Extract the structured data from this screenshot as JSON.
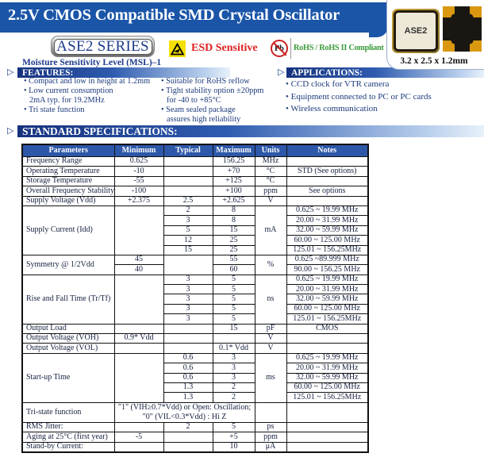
{
  "title": "2.5V CMOS Compatible SMD Crystal Oscillator",
  "series_badge": "ASE2 SERIES",
  "msl": "Moisture Sensitivity Level (MSL)–1",
  "esd": {
    "label": "ESD Sensitive"
  },
  "rohs": {
    "pb": "Pb",
    "label": "RoHS / RoHS II Compliant"
  },
  "product": {
    "chip_label": "ASE2",
    "dimensions": "3.2  x 2.5  x 1.2mm"
  },
  "features": {
    "heading": "FEATURES:",
    "col1": [
      {
        "text": "Compact and low in height at 1.2mm",
        "bullet": true
      },
      {
        "text": "Low current consumption",
        "bullet": true
      },
      {
        "text": "2mA typ. for 19.2MHz",
        "bullet": false
      },
      {
        "text": "Tri state function",
        "bullet": true
      }
    ],
    "col2": [
      {
        "text": "Suitable for RoHS reflow",
        "bullet": true
      },
      {
        "text": "Tight stability option ±20ppm",
        "bullet": true
      },
      {
        "text": "for -40 to +85°C",
        "bullet": false
      },
      {
        "text": "Seam sealed package",
        "bullet": true
      },
      {
        "text": "assures high reliability",
        "bullet": false
      }
    ]
  },
  "applications": {
    "heading": "APPLICATIONS:",
    "items": [
      {
        "text": "CCD clock for VTR camera",
        "bullet": true
      },
      {
        "text": "Equipment connected to PC or PC cards",
        "bullet": true
      },
      {
        "text": "Wireless communication",
        "bullet": true
      }
    ]
  },
  "specs": {
    "heading": "STANDARD SPECIFICATIONS:",
    "columns": [
      "Parameters",
      "Minimum",
      "Typical",
      "Maximum",
      "Units",
      "Notes"
    ],
    "rows": [
      {
        "type": "single",
        "param": "Frequency Range",
        "min": "0.625",
        "typ": "",
        "max": "156.25",
        "units": "MHz",
        "notes": ""
      },
      {
        "type": "single",
        "param": "Operating Temperature",
        "min": "-10",
        "typ": "",
        "max": "+70",
        "units": "°C",
        "notes": "STD (See options)"
      },
      {
        "type": "single",
        "param": "Storage Temperature",
        "min": "-55",
        "typ": "",
        "max": "+125",
        "units": "°C",
        "notes": ""
      },
      {
        "type": "single",
        "param": "Overall Frequency Stability",
        "min": "-100",
        "typ": "",
        "max": "+100",
        "units": "ppm",
        "notes": "See options"
      },
      {
        "type": "single",
        "param": "Supply Voltage (Vdd)",
        "min": "+2.375",
        "typ": "2.5",
        "max": "+2.625",
        "units": "V",
        "notes": ""
      },
      {
        "type": "group",
        "param": "Supply Current (Idd)",
        "units": "mA",
        "merge": "min",
        "mergeVal": "",
        "sub": [
          {
            "min": "",
            "typ": "2",
            "max": "8",
            "notes": "0.625 ~ 19.99 MHz"
          },
          {
            "min": "",
            "typ": "3",
            "max": "8",
            "notes": "20.00 ~ 31.99 MHz"
          },
          {
            "min": "",
            "typ": "5",
            "max": "15",
            "notes": "32.00 ~ 59.99 MHz"
          },
          {
            "min": "",
            "typ": "12",
            "max": "25",
            "notes": "60.00 ~ 125.00 MHz"
          },
          {
            "min": "",
            "typ": "15",
            "max": "25",
            "notes": "125.01 ~ 156.25MHz"
          }
        ]
      },
      {
        "type": "group",
        "param": "Symmetry  @ 1/2Vdd",
        "units": "%",
        "merge": "typ",
        "mergeVal": "",
        "sub": [
          {
            "min": "45",
            "typ": "",
            "max": "55",
            "notes": "0.625 ~89.999 MHz"
          },
          {
            "min": "40",
            "typ": "",
            "max": "60",
            "notes": "90.00 ~ 156.25 MHz"
          }
        ]
      },
      {
        "type": "group",
        "param": "Rise and Fall Time (Tr/Tf)",
        "units": "ns",
        "merge": "min",
        "mergeVal": "",
        "sub": [
          {
            "min": "",
            "typ": "3",
            "max": "5",
            "notes": "0.625 ~ 19.99 MHz"
          },
          {
            "min": "",
            "typ": "3",
            "max": "5",
            "notes": "20.00 ~ 31.99 MHz"
          },
          {
            "min": "",
            "typ": "3",
            "max": "5",
            "notes": "32.00 ~ 59.99 MHz"
          },
          {
            "min": "",
            "typ": "3",
            "max": "5",
            "notes": "60.00 ~ 125.00 MHz"
          },
          {
            "min": "",
            "typ": "3",
            "max": "5",
            "notes": "125.01 ~ 156.25MHz"
          }
        ]
      },
      {
        "type": "single",
        "param": "Output Load",
        "min": "",
        "typ": "",
        "max": "15",
        "units": "pF",
        "notes": "CMOS"
      },
      {
        "type": "single",
        "param": "Output Voltage (VOH)",
        "min": "0.9* Vdd",
        "typ": "",
        "max": "",
        "units": "V",
        "notes": ""
      },
      {
        "type": "single",
        "param": "Output Voltage (VOL)",
        "min": "",
        "typ": "",
        "max": "0.1* Vdd",
        "units": "V",
        "notes": ""
      },
      {
        "type": "group",
        "param": "Start-up Time",
        "units": "ms",
        "merge": "min",
        "mergeVal": "",
        "sub": [
          {
            "min": "",
            "typ": "0.6",
            "max": "3",
            "notes": "0.625 ~ 19.99 MHz"
          },
          {
            "min": "",
            "typ": "0.6",
            "max": "3",
            "notes": "20.00 ~ 31.99 MHz"
          },
          {
            "min": "",
            "typ": "0.6",
            "max": "3",
            "notes": "32.00 ~ 59.99 MHz"
          },
          {
            "min": "",
            "typ": "1.3",
            "max": "2",
            "notes": "60.00 ~ 125.00 MHz"
          },
          {
            "min": "",
            "typ": "1.3",
            "max": "2",
            "notes": "125.01 ~ 156.25MHz"
          }
        ]
      },
      {
        "type": "span3",
        "param": "Tri-state function",
        "lines": [
          "\"1\" (VIH≥0.7*Vdd) or Open: Oscillation;",
          "\"0\" (VIL<0.3*Vdd) : Hi Z"
        ],
        "units": "",
        "notes": ""
      },
      {
        "type": "single",
        "param": "RMS Jitter:",
        "min": "",
        "typ": "2",
        "max": "5",
        "units": "ps",
        "notes": ""
      },
      {
        "type": "single",
        "param": "Aging at 25°C (first year)",
        "min": "-5",
        "typ": "",
        "max": "+5",
        "units": "ppm",
        "notes": ""
      },
      {
        "type": "single",
        "param": "Stand-by Current:",
        "min": "",
        "typ": "",
        "max": "10",
        "units": "μA",
        "notes": ""
      }
    ]
  },
  "colors": {
    "bar_blue": "#1a55a8",
    "header_blue": "#2d57a8",
    "navy_text": "#1c3a7c",
    "esd_red": "#e02020",
    "rohs_green": "#3c9c3c",
    "esd_yellow": "#f6e003",
    "pad_gold": "#d9980f"
  }
}
